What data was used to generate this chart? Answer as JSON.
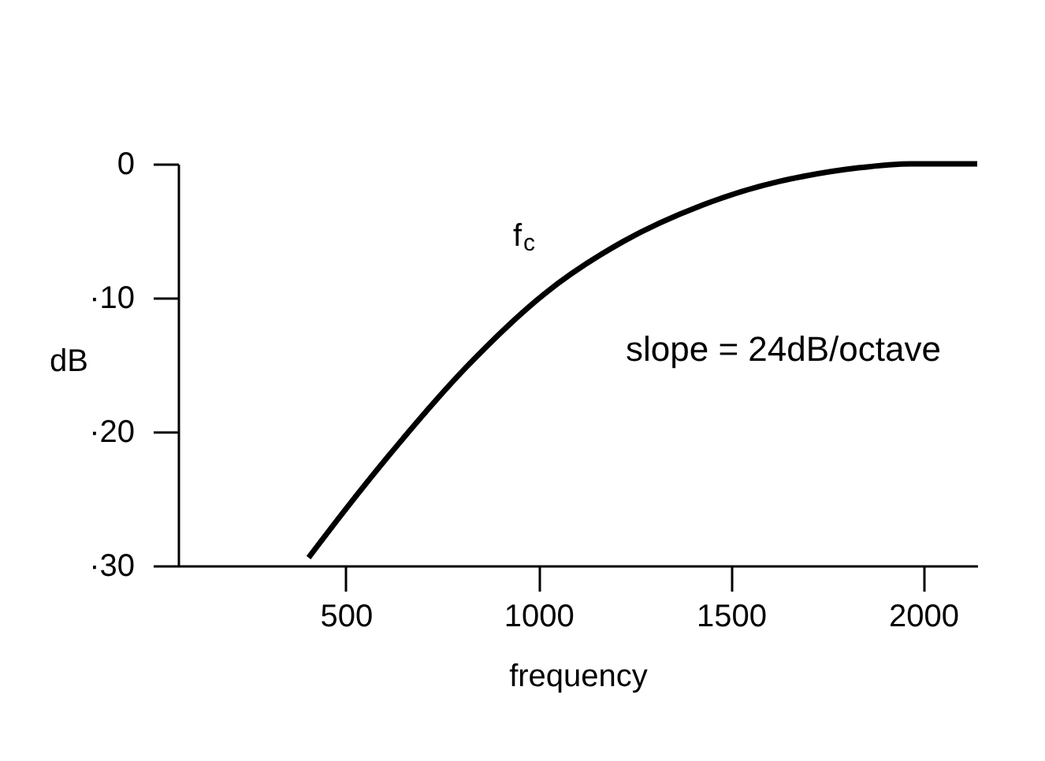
{
  "chart_data": {
    "type": "line",
    "xlabel": "frequency",
    "ylabel": "dB",
    "xlim": [
      64,
      2140
    ],
    "xticks": [
      500,
      1000,
      1500,
      2000
    ],
    "ylim": [
      -30,
      0
    ],
    "yticks": [
      0,
      {
        "value": -10,
        "label": "·10"
      },
      {
        "value": -20,
        "label": "·20"
      },
      {
        "value": -30,
        "label": "·30"
      }
    ],
    "grid": false,
    "marker": "none",
    "line_style": "solid",
    "series": [
      {
        "color": "#000000",
        "x": [
          403,
          499,
          608,
          812,
          1016,
          1220,
          1424,
          1627,
          1695,
          1831,
          1967,
          2140
        ],
        "values": [
          -29.4,
          -25.8,
          -21.9,
          -15.2,
          -9.7,
          -5.8,
          -3.1,
          -1.3,
          -0.9,
          -0.3,
          0,
          0
        ]
      }
    ],
    "annotations": [
      "f$_{c}$",
      "slope = 24dB/octave"
    ]
  }
}
